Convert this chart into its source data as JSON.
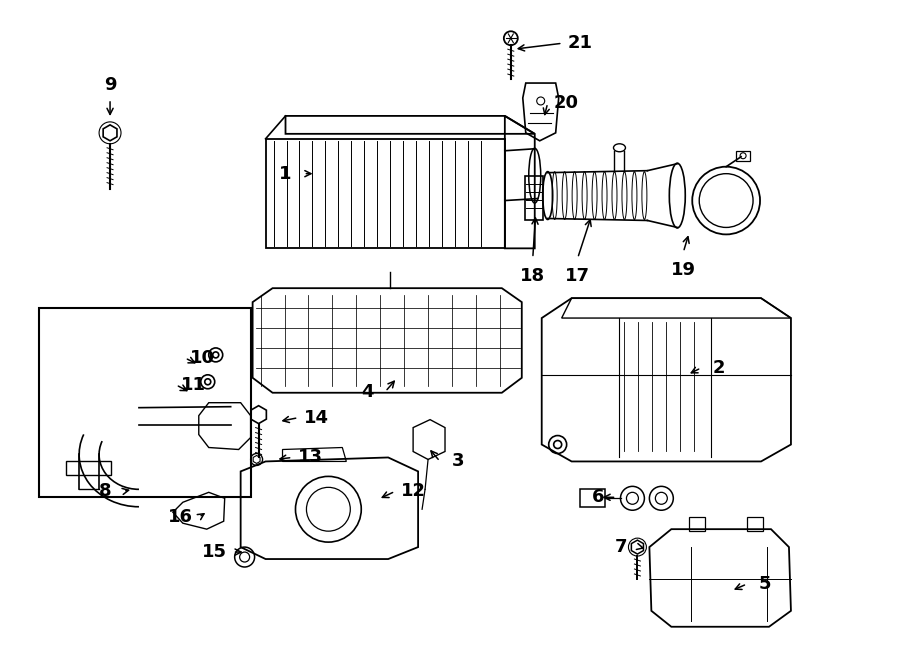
{
  "bg_color": "#ffffff",
  "line_color": "#000000",
  "line_width": 1.2,
  "font_size": 13,
  "font_weight": "bold",
  "labels": {
    "1": [
      303,
      173,
      315,
      173
    ],
    "2": [
      702,
      368,
      688,
      375
    ],
    "3": [
      440,
      462,
      428,
      448
    ],
    "4": [
      385,
      392,
      397,
      378
    ],
    "5": [
      748,
      585,
      732,
      592
    ],
    "6": [
      617,
      498,
      600,
      498
    ],
    "7": [
      640,
      548,
      648,
      550
    ],
    "8": [
      122,
      492,
      132,
      490
    ],
    "9": [
      109,
      98,
      109,
      118
    ],
    "10": [
      184,
      358,
      198,
      365
    ],
    "11": [
      175,
      385,
      190,
      393
    ],
    "12": [
      395,
      492,
      378,
      500
    ],
    "13": [
      292,
      458,
      275,
      460
    ],
    "14": [
      298,
      418,
      278,
      422
    ],
    "15": [
      232,
      553,
      245,
      553
    ],
    "16": [
      198,
      518,
      207,
      512
    ],
    "17": [
      578,
      258,
      592,
      215
    ],
    "18": [
      533,
      258,
      536,
      213
    ],
    "19": [
      684,
      252,
      690,
      232
    ],
    "20": [
      548,
      102,
      544,
      118
    ],
    "21": [
      563,
      42,
      514,
      48
    ]
  }
}
